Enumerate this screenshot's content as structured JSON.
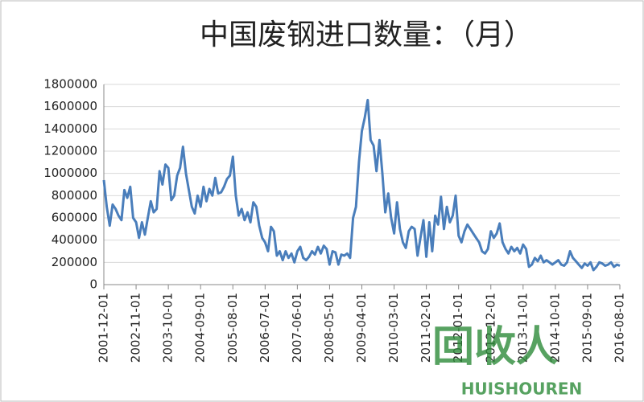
{
  "chart_data": {
    "type": "line",
    "title": "中国废钢进口数量：（月）",
    "categories": [
      "2001-12-01",
      null,
      null,
      null,
      null,
      null,
      null,
      null,
      null,
      null,
      null,
      "2002-11-01",
      null,
      null,
      null,
      null,
      null,
      null,
      null,
      null,
      null,
      null,
      "2003-10-01",
      null,
      null,
      null,
      null,
      null,
      null,
      null,
      null,
      null,
      null,
      "2004-09-01",
      null,
      null,
      null,
      null,
      null,
      null,
      null,
      null,
      null,
      null,
      "2005-08-01",
      null,
      null,
      null,
      null,
      null,
      null,
      null,
      null,
      null,
      null,
      "2006-07-01",
      null,
      null,
      null,
      null,
      null,
      null,
      null,
      null,
      null,
      null,
      "2007-06-01",
      null,
      null,
      null,
      null,
      null,
      null,
      null,
      null,
      null,
      null,
      "2008-05-01",
      null,
      null,
      null,
      null,
      null,
      null,
      null,
      null,
      null,
      null,
      "2009-04-01",
      null,
      null,
      null,
      null,
      null,
      null,
      null,
      null,
      null,
      null,
      "2010-03-01",
      null,
      null,
      null,
      null,
      null,
      null,
      null,
      null,
      null,
      null,
      "2011-02-01",
      null,
      null,
      null,
      null,
      null,
      null,
      null,
      null,
      null,
      null,
      "2012-01-01",
      null,
      null,
      null,
      null,
      null,
      null,
      null,
      null,
      null,
      null,
      "2012-12-01",
      null,
      null,
      null,
      null,
      null,
      null,
      null,
      null,
      null,
      null,
      "2013-11-01",
      null,
      null,
      null,
      null,
      null,
      null,
      null,
      null,
      null,
      null,
      "2014-10-01",
      null,
      null,
      null,
      null,
      null,
      null,
      null,
      null,
      null,
      null,
      "2015-09-01",
      null,
      null,
      null,
      null,
      null,
      null,
      null,
      null,
      null,
      null,
      "2016-08-01"
    ],
    "series": [
      {
        "color": "#4a7ebb",
        "values": [
          940000,
          700000,
          530000,
          720000,
          680000,
          620000,
          580000,
          850000,
          780000,
          880000,
          600000,
          560000,
          420000,
          560000,
          450000,
          600000,
          750000,
          650000,
          680000,
          1020000,
          900000,
          1080000,
          1050000,
          760000,
          800000,
          980000,
          1050000,
          1240000,
          1000000,
          850000,
          700000,
          640000,
          800000,
          700000,
          880000,
          750000,
          860000,
          800000,
          960000,
          820000,
          830000,
          880000,
          950000,
          980000,
          1150000,
          800000,
          620000,
          680000,
          580000,
          650000,
          560000,
          740000,
          700000,
          530000,
          420000,
          380000,
          300000,
          520000,
          480000,
          260000,
          300000,
          220000,
          300000,
          240000,
          280000,
          200000,
          300000,
          340000,
          240000,
          220000,
          250000,
          300000,
          270000,
          340000,
          280000,
          350000,
          320000,
          180000,
          300000,
          290000,
          180000,
          270000,
          260000,
          280000,
          240000,
          600000,
          700000,
          1100000,
          1380000,
          1500000,
          1660000,
          1300000,
          1250000,
          1020000,
          1300000,
          1000000,
          650000,
          820000,
          600000,
          460000,
          740000,
          500000,
          380000,
          330000,
          480000,
          520000,
          500000,
          260000,
          420000,
          580000,
          250000,
          560000,
          300000,
          620000,
          540000,
          790000,
          500000,
          700000,
          560000,
          620000,
          800000,
          440000,
          380000,
          480000,
          540000,
          500000,
          460000,
          420000,
          380000,
          300000,
          280000,
          320000,
          480000,
          420000,
          460000,
          550000,
          380000,
          320000,
          280000,
          340000,
          300000,
          330000,
          280000,
          360000,
          320000,
          160000,
          180000,
          240000,
          210000,
          260000,
          200000,
          220000,
          200000,
          180000,
          200000,
          220000,
          180000,
          170000,
          200000,
          300000,
          240000,
          210000,
          180000,
          150000,
          190000,
          170000,
          200000,
          130000,
          160000,
          200000,
          190000,
          170000,
          180000,
          200000,
          160000,
          180000,
          170000
        ]
      }
    ],
    "ylim": [
      0,
      1800000
    ],
    "yticks": [
      0,
      200000,
      400000,
      600000,
      800000,
      1000000,
      1200000,
      1400000,
      1600000,
      1800000
    ],
    "grid": true,
    "watermark": {
      "text": "回收人",
      "subtext": "HUISHOUREN"
    }
  }
}
